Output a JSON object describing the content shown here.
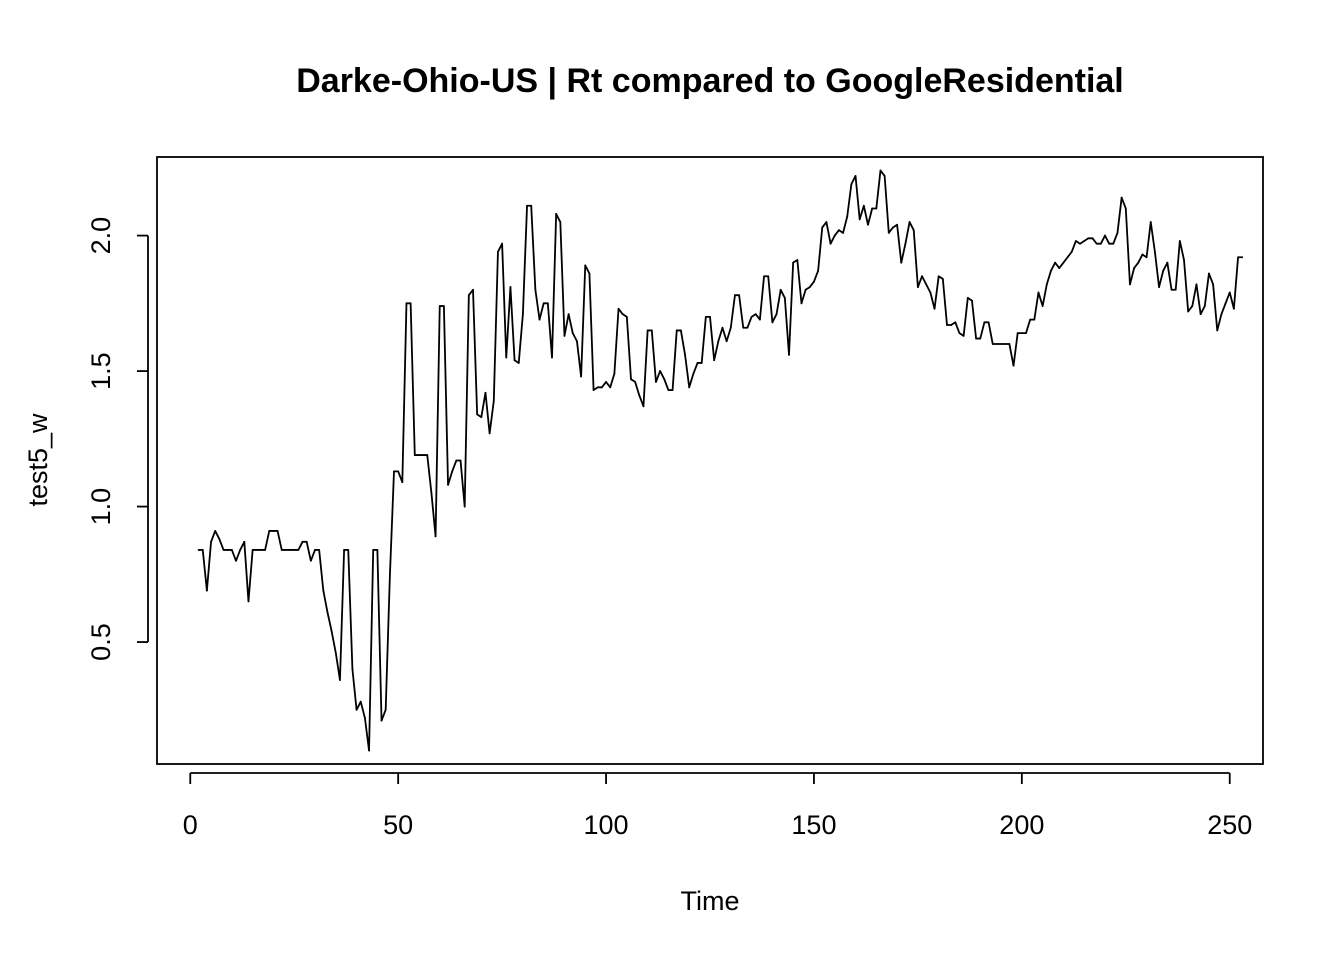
{
  "chart_data": {
    "type": "line",
    "title": "Darke-Ohio-US | Rt compared to GoogleResidential",
    "xlabel": "Time",
    "ylabel": "test5_w",
    "xlim": [
      -8,
      258
    ],
    "ylim": [
      0.05,
      2.29
    ],
    "x_ticks": [
      0,
      50,
      100,
      150,
      200,
      250
    ],
    "y_ticks": [
      0.5,
      1.0,
      1.5,
      2.0
    ],
    "x_tick_labels": [
      "0",
      "50",
      "100",
      "150",
      "200",
      "250"
    ],
    "y_tick_labels": [
      "0.5",
      "1.0",
      "1.5",
      "2.0"
    ],
    "grid": false,
    "line_color": "#000000",
    "series": [
      {
        "x_start": 2,
        "values": [
          0.84,
          0.84,
          0.69,
          0.87,
          0.91,
          0.88,
          0.84,
          0.84,
          0.84,
          0.8,
          0.84,
          0.87,
          0.65,
          0.84,
          0.84,
          0.84,
          0.84,
          0.91,
          0.91,
          0.91,
          0.84,
          0.84,
          0.84,
          0.84,
          0.84,
          0.87,
          0.87,
          0.8,
          0.84,
          0.84,
          0.69,
          0.61,
          0.54,
          0.46,
          0.36,
          0.84,
          0.84,
          0.4,
          0.25,
          0.28,
          0.22,
          0.1,
          0.84,
          0.84,
          0.21,
          0.25,
          0.74,
          1.13,
          1.13,
          1.09,
          1.75,
          1.75,
          1.19,
          1.19,
          1.19,
          1.19,
          1.05,
          0.89,
          1.74,
          1.74,
          1.08,
          1.13,
          1.17,
          1.17,
          1.0,
          1.78,
          1.8,
          1.34,
          1.33,
          1.42,
          1.27,
          1.39,
          1.94,
          1.97,
          1.55,
          1.81,
          1.54,
          1.53,
          1.71,
          2.11,
          2.11,
          1.8,
          1.69,
          1.75,
          1.75,
          1.55,
          2.08,
          2.05,
          1.63,
          1.71,
          1.64,
          1.61,
          1.48,
          1.89,
          1.86,
          1.43,
          1.44,
          1.44,
          1.46,
          1.44,
          1.49,
          1.73,
          1.71,
          1.7,
          1.47,
          1.46,
          1.41,
          1.37,
          1.65,
          1.65,
          1.46,
          1.5,
          1.47,
          1.43,
          1.43,
          1.65,
          1.65,
          1.56,
          1.44,
          1.49,
          1.53,
          1.53,
          1.7,
          1.7,
          1.54,
          1.61,
          1.66,
          1.61,
          1.66,
          1.78,
          1.78,
          1.66,
          1.66,
          1.7,
          1.71,
          1.69,
          1.85,
          1.85,
          1.68,
          1.71,
          1.8,
          1.77,
          1.56,
          1.9,
          1.91,
          1.75,
          1.8,
          1.81,
          1.83,
          1.87,
          2.03,
          2.05,
          1.97,
          2.0,
          2.02,
          2.01,
          2.07,
          2.19,
          2.22,
          2.06,
          2.11,
          2.04,
          2.1,
          2.1,
          2.24,
          2.22,
          2.01,
          2.03,
          2.04,
          1.9,
          1.97,
          2.05,
          2.02,
          1.81,
          1.85,
          1.82,
          1.79,
          1.73,
          1.85,
          1.84,
          1.67,
          1.67,
          1.68,
          1.64,
          1.63,
          1.77,
          1.76,
          1.62,
          1.62,
          1.68,
          1.68,
          1.6,
          1.6,
          1.6,
          1.6,
          1.6,
          1.52,
          1.64,
          1.64,
          1.64,
          1.69,
          1.69,
          1.79,
          1.74,
          1.82,
          1.87,
          1.9,
          1.88,
          1.9,
          1.92,
          1.94,
          1.98,
          1.97,
          1.98,
          1.99,
          1.99,
          1.97,
          1.97,
          2.0,
          1.97,
          1.97,
          2.01,
          2.14,
          2.1,
          1.82,
          1.88,
          1.9,
          1.93,
          1.92,
          2.05,
          1.94,
          1.81,
          1.87,
          1.9,
          1.8,
          1.8,
          1.98,
          1.91,
          1.72,
          1.74,
          1.82,
          1.71,
          1.74,
          1.86,
          1.82,
          1.65,
          1.71,
          1.75,
          1.79,
          1.73,
          1.92,
          1.92
        ]
      }
    ]
  }
}
